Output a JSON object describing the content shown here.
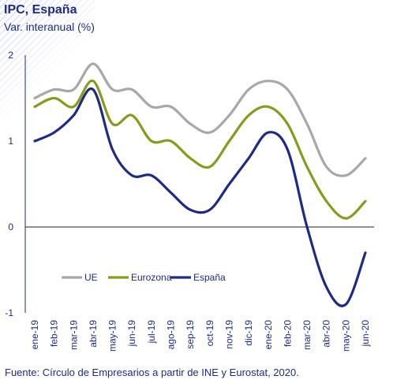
{
  "title": "IPC, España",
  "subtitle": "Var. interanual (%)",
  "source": "Fuente: Círculo de Empresarios a partir de INE y Eurostat, 2020.",
  "chart_data": {
    "type": "line",
    "categories": [
      "ene-19",
      "feb-19",
      "mar-19",
      "abr-19",
      "may-19",
      "jun-19",
      "jul-19",
      "ago-19",
      "sep-19",
      "oct-19",
      "nov-19",
      "dic-19",
      "ene-20",
      "feb-20",
      "mar-20",
      "abr-20",
      "may-20",
      "jun-20"
    ],
    "ylim": [
      -1,
      2
    ],
    "yticks": [
      -1,
      0,
      1,
      2
    ],
    "grid": false,
    "legend_position": "lower-left",
    "series": [
      {
        "name": "UE",
        "color": "#a8a8a8",
        "values": [
          1.5,
          1.6,
          1.6,
          1.9,
          1.6,
          1.6,
          1.4,
          1.4,
          1.2,
          1.1,
          1.3,
          1.6,
          1.7,
          1.6,
          1.2,
          0.7,
          0.6,
          0.8
        ]
      },
      {
        "name": "Eurozona",
        "color": "#8a9a1c",
        "values": [
          1.4,
          1.5,
          1.4,
          1.7,
          1.2,
          1.3,
          1.0,
          1.0,
          0.8,
          0.7,
          1.0,
          1.3,
          1.4,
          1.2,
          0.7,
          0.3,
          0.1,
          0.3
        ]
      },
      {
        "name": "España",
        "color": "#1e2b86",
        "values": [
          1.0,
          1.1,
          1.3,
          1.6,
          0.9,
          0.6,
          0.6,
          0.4,
          0.2,
          0.2,
          0.5,
          0.8,
          1.1,
          0.9,
          0.0,
          -0.7,
          -0.9,
          -0.3
        ]
      }
    ]
  }
}
